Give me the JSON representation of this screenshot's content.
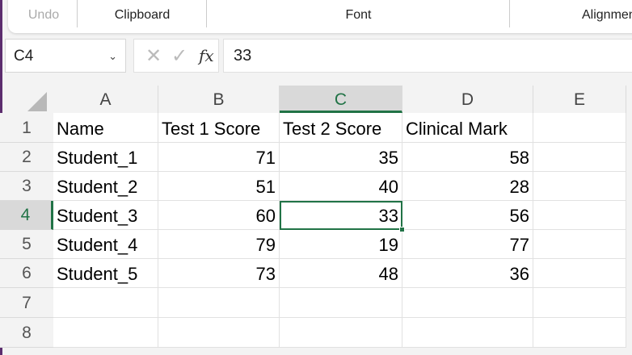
{
  "ribbon": {
    "groups": [
      "Undo",
      "Clipboard",
      "Font",
      "Alignment"
    ]
  },
  "name_box": "C4",
  "formula_bar": {
    "cancel_icon": "x-icon",
    "enter_icon": "check-icon",
    "fx": "fx",
    "value": "33"
  },
  "columns": [
    "A",
    "B",
    "C",
    "D",
    "E"
  ],
  "selected_column": "C",
  "rows": [
    "1",
    "2",
    "3",
    "4",
    "5",
    "6",
    "7",
    "8"
  ],
  "selected_row": "4",
  "cells": [
    [
      "Name",
      "Test 1 Score",
      "Test 2 Score",
      "Clinical Mark",
      ""
    ],
    [
      "Student_1",
      "71",
      "35",
      "58",
      ""
    ],
    [
      "Student_2",
      "51",
      "40",
      "28",
      ""
    ],
    [
      "Student_3",
      "60",
      "33",
      "56",
      ""
    ],
    [
      "Student_4",
      "79",
      "19",
      "77",
      ""
    ],
    [
      "Student_5",
      "73",
      "48",
      "36",
      ""
    ],
    [
      "",
      "",
      "",
      "",
      ""
    ],
    [
      "",
      "",
      "",
      "",
      ""
    ]
  ],
  "accent": "#217346"
}
